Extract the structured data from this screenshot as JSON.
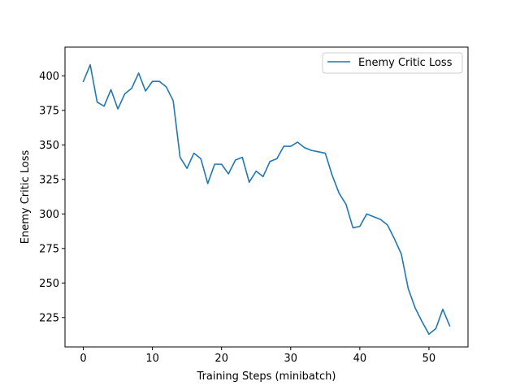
{
  "chart_data": {
    "type": "line",
    "title": "",
    "xlabel": "Training Steps (minibatch)",
    "ylabel": "Enemy Critic Loss",
    "xlim": [
      -2.65,
      55.65
    ],
    "ylim": [
      203.7,
      420.8
    ],
    "xticks": [
      0,
      10,
      20,
      30,
      40,
      50
    ],
    "yticks": [
      225,
      250,
      275,
      300,
      325,
      350,
      375,
      400
    ],
    "grid": false,
    "legend_position": "top-right",
    "series": [
      {
        "name": "Enemy Critic Loss",
        "color": "#1f77b4",
        "x": [
          0,
          1,
          2,
          3,
          4,
          5,
          6,
          7,
          8,
          9,
          10,
          11,
          12,
          13,
          14,
          15,
          16,
          17,
          18,
          19,
          20,
          21,
          22,
          23,
          24,
          25,
          26,
          27,
          28,
          29,
          30,
          31,
          32,
          33,
          34,
          35,
          36,
          37,
          38,
          39,
          40,
          41,
          42,
          43,
          44,
          45,
          46,
          47,
          48,
          49,
          50,
          51,
          52,
          53
        ],
        "values": [
          396,
          408,
          381,
          378,
          390,
          376,
          387,
          391,
          402,
          389,
          396,
          396,
          392,
          382,
          341,
          333,
          344,
          340,
          322,
          336,
          336,
          329,
          339,
          341,
          323,
          331,
          327,
          338,
          340,
          349,
          349,
          352,
          348,
          346,
          345,
          344,
          328,
          315,
          307,
          290,
          291,
          300,
          298,
          296,
          292,
          282,
          271,
          246,
          232,
          222,
          213,
          217,
          231,
          219
        ]
      }
    ]
  }
}
